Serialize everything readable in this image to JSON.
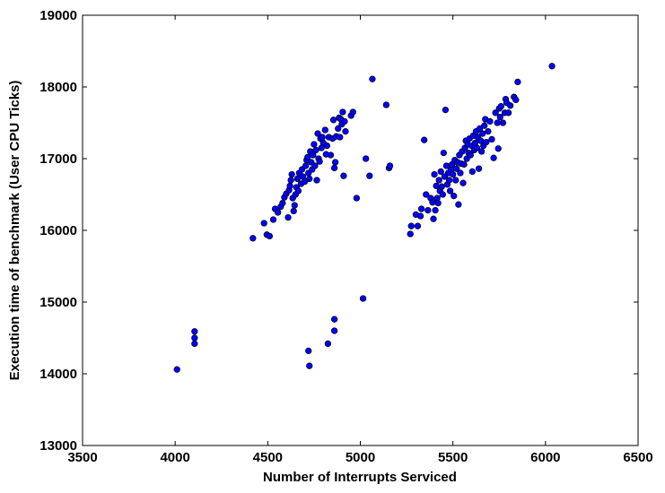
{
  "chart_data": {
    "type": "scatter",
    "title": "",
    "xlabel": "Number of Interrupts Serviced",
    "ylabel": "Execution time of benchmark (User CPU Ticks)",
    "xlim": [
      3500,
      6500
    ],
    "ylim": [
      13000,
      19000
    ],
    "xticks": [
      "3500",
      "4000",
      "4500",
      "5000",
      "5500",
      "6000",
      "6500"
    ],
    "yticks": [
      "13000",
      "14000",
      "15000",
      "16000",
      "17000",
      "18000",
      "19000"
    ],
    "grid": false,
    "marker_color": "#0000ff",
    "series": [
      {
        "points": [
          [
            4010,
            14060
          ],
          [
            4105,
            14420
          ],
          [
            4105,
            14500
          ],
          [
            4105,
            14590
          ],
          [
            4420,
            15890
          ],
          [
            4480,
            16100
          ],
          [
            4495,
            15940
          ],
          [
            4510,
            15920
          ],
          [
            4530,
            16150
          ],
          [
            4540,
            16300
          ],
          [
            4555,
            16250
          ],
          [
            4570,
            16330
          ],
          [
            4580,
            16380
          ],
          [
            4590,
            16460
          ],
          [
            4600,
            16510
          ],
          [
            4610,
            16180
          ],
          [
            4615,
            16560
          ],
          [
            4620,
            16620
          ],
          [
            4625,
            16700
          ],
          [
            4630,
            16780
          ],
          [
            4635,
            16450
          ],
          [
            4640,
            16270
          ],
          [
            4645,
            16350
          ],
          [
            4650,
            16500
          ],
          [
            4655,
            16600
          ],
          [
            4660,
            16720
          ],
          [
            4665,
            16550
          ],
          [
            4670,
            16800
          ],
          [
            4680,
            16650
          ],
          [
            4685,
            16850
          ],
          [
            4690,
            16750
          ],
          [
            4700,
            16680
          ],
          [
            4705,
            16900
          ],
          [
            4710,
            16980
          ],
          [
            4715,
            17020
          ],
          [
            4720,
            16800
          ],
          [
            4725,
            16720
          ],
          [
            4730,
            17100
          ],
          [
            4735,
            16950
          ],
          [
            4740,
            16850
          ],
          [
            4745,
            17050
          ],
          [
            4750,
            17200
          ],
          [
            4755,
            16900
          ],
          [
            4760,
            17120
          ],
          [
            4765,
            16700
          ],
          [
            4770,
            17350
          ],
          [
            4775,
            17000
          ],
          [
            4780,
            16960
          ],
          [
            4785,
            17280
          ],
          [
            4790,
            17150
          ],
          [
            4795,
            17300
          ],
          [
            4800,
            17220
          ],
          [
            4810,
            17400
          ],
          [
            4815,
            17060
          ],
          [
            4820,
            17180
          ],
          [
            4830,
            17300
          ],
          [
            4840,
            17050
          ],
          [
            4850,
            17280
          ],
          [
            4855,
            17540
          ],
          [
            4860,
            16870
          ],
          [
            4865,
            16950
          ],
          [
            4870,
            17310
          ],
          [
            4880,
            17420
          ],
          [
            4885,
            17570
          ],
          [
            4890,
            17300
          ],
          [
            4895,
            17550
          ],
          [
            4900,
            17480
          ],
          [
            4905,
            17650
          ],
          [
            4910,
            16760
          ],
          [
            4915,
            17520
          ],
          [
            4920,
            17380
          ],
          [
            4950,
            17600
          ],
          [
            4960,
            17650
          ],
          [
            4980,
            16450
          ],
          [
            5030,
            17000
          ],
          [
            5050,
            16760
          ],
          [
            5065,
            18110
          ],
          [
            5140,
            17750
          ],
          [
            5155,
            16870
          ],
          [
            5160,
            16900
          ],
          [
            4720,
            14320
          ],
          [
            4725,
            14110
          ],
          [
            4825,
            14420
          ],
          [
            4860,
            14600
          ],
          [
            4860,
            14760
          ],
          [
            5015,
            15050
          ],
          [
            5270,
            15950
          ],
          [
            5275,
            16060
          ],
          [
            5300,
            16220
          ],
          [
            5310,
            16060
          ],
          [
            5325,
            16200
          ],
          [
            5330,
            16300
          ],
          [
            5345,
            17260
          ],
          [
            5355,
            16500
          ],
          [
            5365,
            16280
          ],
          [
            5380,
            16450
          ],
          [
            5390,
            16390
          ],
          [
            5395,
            16160
          ],
          [
            5400,
            16780
          ],
          [
            5405,
            16280
          ],
          [
            5410,
            16620
          ],
          [
            5415,
            16450
          ],
          [
            5420,
            16380
          ],
          [
            5425,
            16700
          ],
          [
            5430,
            16550
          ],
          [
            5435,
            16820
          ],
          [
            5440,
            16610
          ],
          [
            5445,
            16500
          ],
          [
            5450,
            17080
          ],
          [
            5455,
            16750
          ],
          [
            5460,
            17680
          ],
          [
            5465,
            16900
          ],
          [
            5470,
            16640
          ],
          [
            5475,
            16800
          ],
          [
            5480,
            16700
          ],
          [
            5485,
            16550
          ],
          [
            5490,
            16850
          ],
          [
            5495,
            16920
          ],
          [
            5500,
            16780
          ],
          [
            5505,
            16480
          ],
          [
            5510,
            16980
          ],
          [
            5515,
            16700
          ],
          [
            5520,
            16860
          ],
          [
            5525,
            16950
          ],
          [
            5530,
            16360
          ],
          [
            5535,
            17050
          ],
          [
            5540,
            16800
          ],
          [
            5545,
            16930
          ],
          [
            5550,
            17100
          ],
          [
            5555,
            16660
          ],
          [
            5560,
            16920
          ],
          [
            5565,
            17150
          ],
          [
            5570,
            17250
          ],
          [
            5575,
            17000
          ],
          [
            5580,
            17200
          ],
          [
            5585,
            17080
          ],
          [
            5590,
            17280
          ],
          [
            5595,
            17050
          ],
          [
            5600,
            17180
          ],
          [
            5605,
            16820
          ],
          [
            5610,
            17320
          ],
          [
            5615,
            17120
          ],
          [
            5620,
            17220
          ],
          [
            5625,
            17380
          ],
          [
            5630,
            17150
          ],
          [
            5635,
            17300
          ],
          [
            5640,
            16860
          ],
          [
            5645,
            17420
          ],
          [
            5650,
            17250
          ],
          [
            5655,
            17100
          ],
          [
            5660,
            17350
          ],
          [
            5665,
            17180
          ],
          [
            5670,
            17460
          ],
          [
            5675,
            17550
          ],
          [
            5680,
            17230
          ],
          [
            5690,
            17380
          ],
          [
            5700,
            17520
          ],
          [
            5710,
            17270
          ],
          [
            5720,
            17010
          ],
          [
            5730,
            17640
          ],
          [
            5740,
            17500
          ],
          [
            5745,
            17140
          ],
          [
            5750,
            17700
          ],
          [
            5755,
            17580
          ],
          [
            5760,
            17730
          ],
          [
            5770,
            17500
          ],
          [
            5780,
            17640
          ],
          [
            5785,
            17830
          ],
          [
            5790,
            17780
          ],
          [
            5800,
            17640
          ],
          [
            5810,
            17740
          ],
          [
            5830,
            17860
          ],
          [
            5840,
            17820
          ],
          [
            5850,
            18070
          ],
          [
            6035,
            18290
          ]
        ]
      }
    ]
  }
}
